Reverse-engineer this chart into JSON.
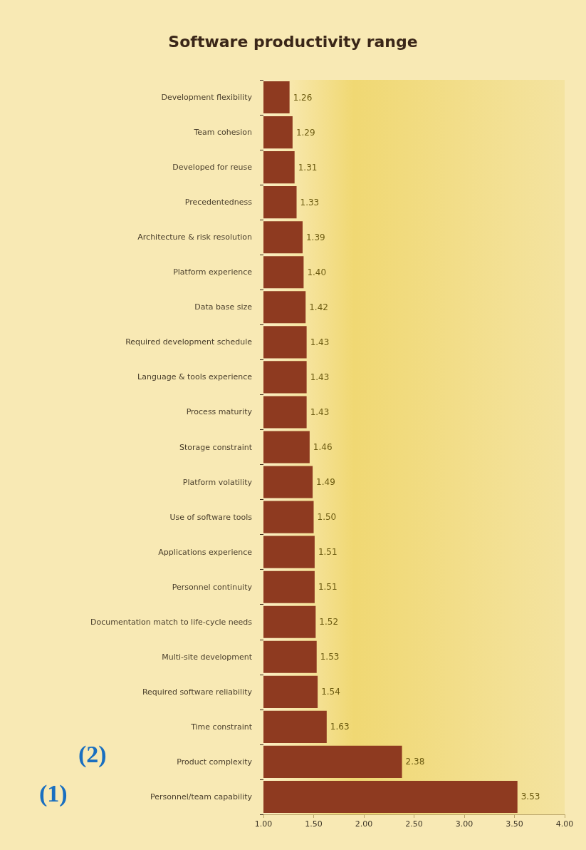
{
  "chart_data": {
    "type": "bar",
    "title": "Software productivity range",
    "orientation": "horizontal",
    "categories": [
      "Development flexibility",
      "Team cohesion",
      "Developed for reuse",
      "Precedentedness",
      "Architecture & risk resolution",
      "Platform experience",
      "Data base size",
      "Required development schedule",
      "Language & tools experience",
      "Process maturity",
      "Storage constraint",
      "Platform volatility",
      "Use of software tools",
      "Applications experience",
      "Personnel continuity",
      "Documentation match to life-cycle needs",
      "Multi-site development",
      "Required software reliability",
      "Time constraint",
      "Product complexity",
      "Personnel/team capability"
    ],
    "values": [
      1.26,
      1.29,
      1.31,
      1.33,
      1.39,
      1.4,
      1.42,
      1.43,
      1.43,
      1.43,
      1.46,
      1.49,
      1.5,
      1.51,
      1.51,
      1.52,
      1.53,
      1.54,
      1.63,
      2.38,
      3.53
    ],
    "value_labels": [
      "1.26",
      "1.29",
      "1.31",
      "1.33",
      "1.39",
      "1.40",
      "1.42",
      "1.43",
      "1.43",
      "1.43",
      "1.46",
      "1.49",
      "1.50",
      "1.51",
      "1.51",
      "1.52",
      "1.53",
      "1.54",
      "1.63",
      "2.38",
      "3.53"
    ],
    "color": "#8e3a20",
    "xlim": [
      1,
      4
    ],
    "xticks": [
      {
        "value": 1,
        "label": "1.00"
      },
      {
        "value": 1.5,
        "label": "1.50"
      },
      {
        "value": 2,
        "label": "2.00"
      },
      {
        "value": 2.5,
        "label": "2.50"
      },
      {
        "value": 3,
        "label": "3.00"
      },
      {
        "value": 3.5,
        "label": "3.50"
      },
      {
        "value": 4,
        "label": "4.00"
      }
    ],
    "annotations": [
      "(1)",
      "(2)"
    ],
    "grid": false
  }
}
